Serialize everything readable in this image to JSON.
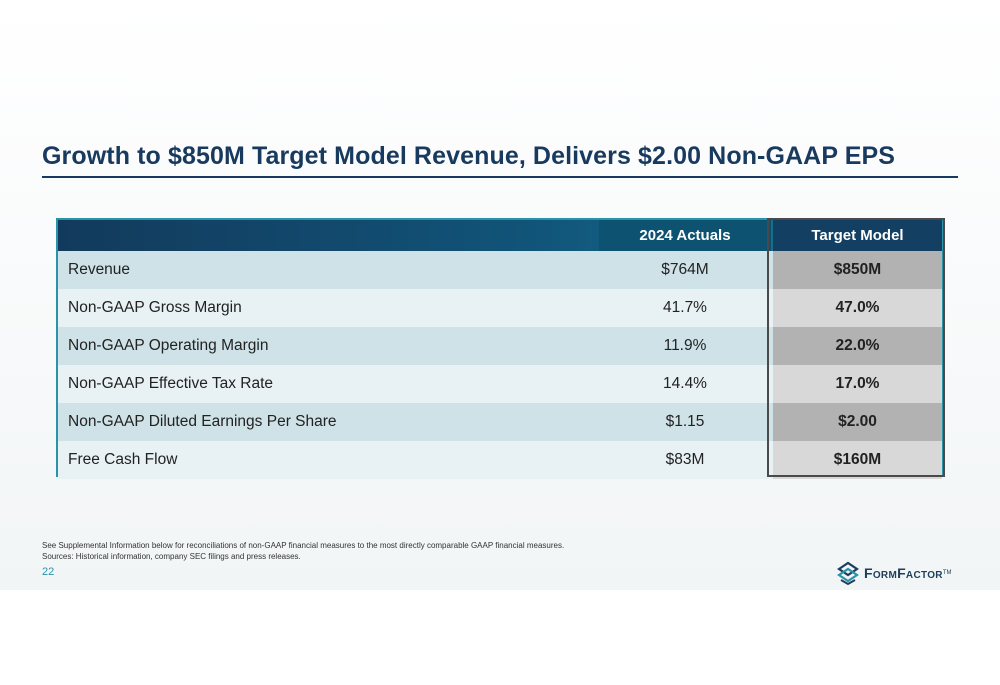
{
  "title": "Growth to $850M Target Model Revenue, Delivers $2.00 Non-GAAP EPS",
  "table": {
    "headers": {
      "label": "",
      "actuals": "2024 Actuals",
      "target": "Target Model"
    },
    "rows": [
      {
        "label": "Revenue",
        "actuals": "$764M",
        "target": "$850M"
      },
      {
        "label": "Non-GAAP Gross Margin",
        "actuals": "41.7%",
        "target": "47.0%"
      },
      {
        "label": "Non-GAAP Operating Margin",
        "actuals": "11.9%",
        "target": "22.0%"
      },
      {
        "label": "Non-GAAP Effective Tax Rate",
        "actuals": "14.4%",
        "target": "17.0%"
      },
      {
        "label": "Non-GAAP Diluted Earnings Per Share",
        "actuals": "$1.15",
        "target": "$2.00"
      },
      {
        "label": "Free Cash Flow",
        "actuals": "$83M",
        "target": "$160M"
      }
    ]
  },
  "footnotes": [
    "See Supplemental Information below for reconciliations of non-GAAP financial measures to the most directly comparable GAAP financial measures.",
    "Sources: Historical information, company SEC filings and press releases."
  ],
  "page_number": "22",
  "logo": {
    "text": "FormFactor",
    "tm": "TM"
  },
  "colors": {
    "title": "#173a5e",
    "accent": "#2a93a8",
    "header_dark": "#123a5c"
  }
}
